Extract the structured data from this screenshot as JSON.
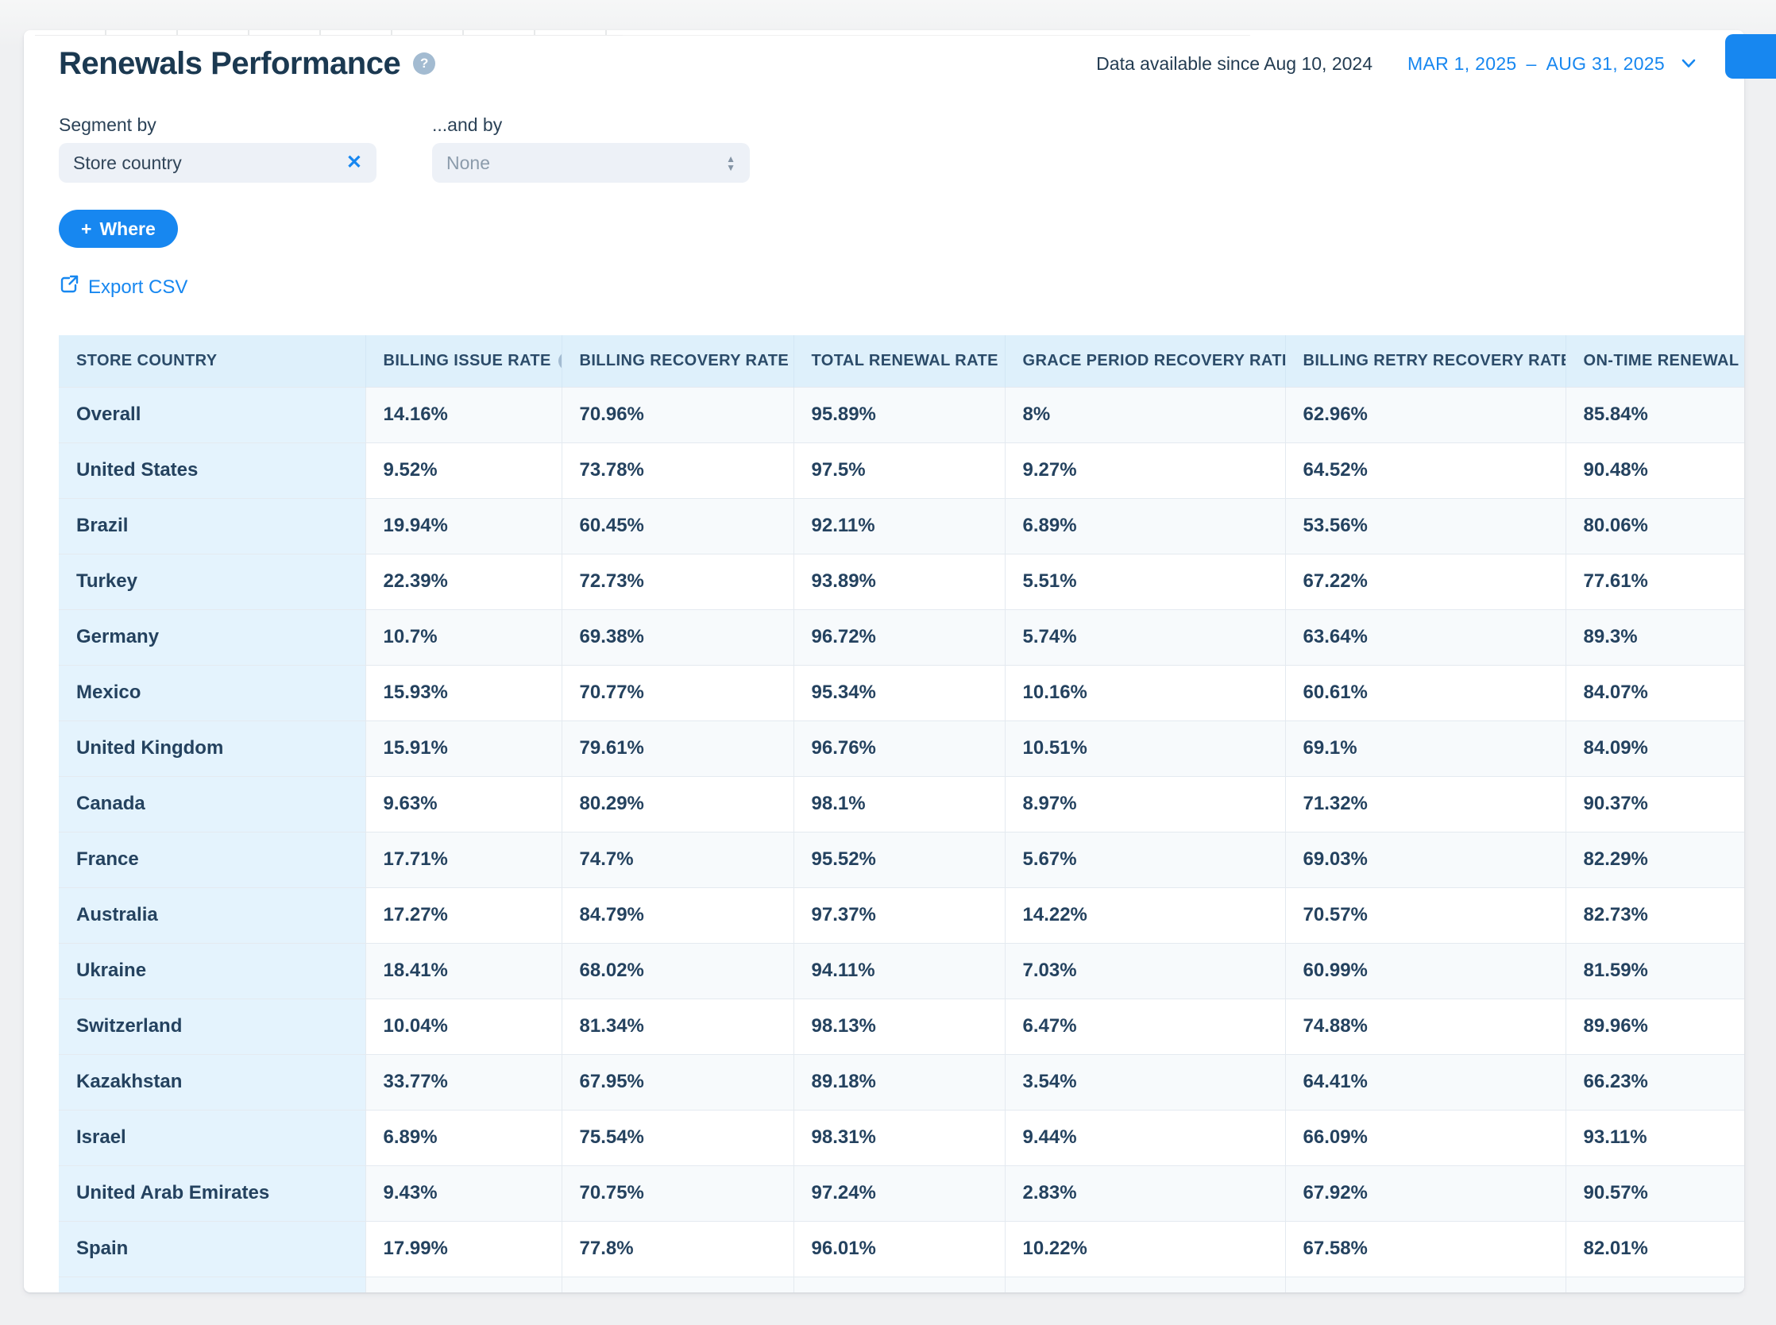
{
  "header": {
    "title": "Renewals Performance",
    "availability": "Data available since Aug 10, 2024",
    "date_range_start": "MAR 1, 2025",
    "date_range_separator": "–",
    "date_range_end": "AUG 31, 2025"
  },
  "filters": {
    "segment_by_label": "Segment by",
    "segment_by_value": "Store country",
    "and_by_label": "...and by",
    "and_by_value": "None",
    "where_button_plus": "+",
    "where_button_label": "Where",
    "export_csv_label": "Export CSV"
  },
  "icons": {
    "help_glyph": "?",
    "clear_glyph": "✕",
    "stepper_up": "▲",
    "stepper_down": "▼"
  },
  "table": {
    "columns": [
      {
        "label": "STORE COUNTRY",
        "help_icon": false
      },
      {
        "label": "BILLING ISSUE RATE",
        "help_icon": true
      },
      {
        "label": "BILLING RECOVERY RATE",
        "help_icon": true
      },
      {
        "label": "TOTAL RENEWAL RATE",
        "help_icon": true
      },
      {
        "label": "GRACE PERIOD RECOVERY RATE",
        "help_icon": true
      },
      {
        "label": "BILLING RETRY RECOVERY RATE",
        "help_icon": true
      },
      {
        "label": "ON-TIME RENEWAL RATE",
        "help_icon": true
      }
    ],
    "rows": [
      {
        "country": "Overall",
        "values": [
          "14.16%",
          "70.96%",
          "95.89%",
          "8%",
          "62.96%",
          "85.84%"
        ]
      },
      {
        "country": "United States",
        "values": [
          "9.52%",
          "73.78%",
          "97.5%",
          "9.27%",
          "64.52%",
          "90.48%"
        ]
      },
      {
        "country": "Brazil",
        "values": [
          "19.94%",
          "60.45%",
          "92.11%",
          "6.89%",
          "53.56%",
          "80.06%"
        ]
      },
      {
        "country": "Turkey",
        "values": [
          "22.39%",
          "72.73%",
          "93.89%",
          "5.51%",
          "67.22%",
          "77.61%"
        ]
      },
      {
        "country": "Germany",
        "values": [
          "10.7%",
          "69.38%",
          "96.72%",
          "5.74%",
          "63.64%",
          "89.3%"
        ]
      },
      {
        "country": "Mexico",
        "values": [
          "15.93%",
          "70.77%",
          "95.34%",
          "10.16%",
          "60.61%",
          "84.07%"
        ]
      },
      {
        "country": "United Kingdom",
        "values": [
          "15.91%",
          "79.61%",
          "96.76%",
          "10.51%",
          "69.1%",
          "84.09%"
        ]
      },
      {
        "country": "Canada",
        "values": [
          "9.63%",
          "80.29%",
          "98.1%",
          "8.97%",
          "71.32%",
          "90.37%"
        ]
      },
      {
        "country": "France",
        "values": [
          "17.71%",
          "74.7%",
          "95.52%",
          "5.67%",
          "69.03%",
          "82.29%"
        ]
      },
      {
        "country": "Australia",
        "values": [
          "17.27%",
          "84.79%",
          "97.37%",
          "14.22%",
          "70.57%",
          "82.73%"
        ]
      },
      {
        "country": "Ukraine",
        "values": [
          "18.41%",
          "68.02%",
          "94.11%",
          "7.03%",
          "60.99%",
          "81.59%"
        ]
      },
      {
        "country": "Switzerland",
        "values": [
          "10.04%",
          "81.34%",
          "98.13%",
          "6.47%",
          "74.88%",
          "89.96%"
        ]
      },
      {
        "country": "Kazakhstan",
        "values": [
          "33.77%",
          "67.95%",
          "89.18%",
          "3.54%",
          "64.41%",
          "66.23%"
        ]
      },
      {
        "country": "Israel",
        "values": [
          "6.89%",
          "75.54%",
          "98.31%",
          "9.44%",
          "66.09%",
          "93.11%"
        ]
      },
      {
        "country": "United Arab Emirates",
        "values": [
          "9.43%",
          "70.75%",
          "97.24%",
          "2.83%",
          "67.92%",
          "90.57%"
        ]
      },
      {
        "country": "Spain",
        "values": [
          "17.99%",
          "77.8%",
          "96.01%",
          "10.22%",
          "67.58%",
          "82.01%"
        ]
      }
    ],
    "partial_row_visible": true
  },
  "colors": {
    "accent": "#1787f0",
    "title_navy": "#1b3951",
    "cell_text": "#24425f",
    "header_bg": "#def0fb",
    "first_col_bg": "#e4f3fd",
    "odd_row_bg": "#f7fafc"
  }
}
